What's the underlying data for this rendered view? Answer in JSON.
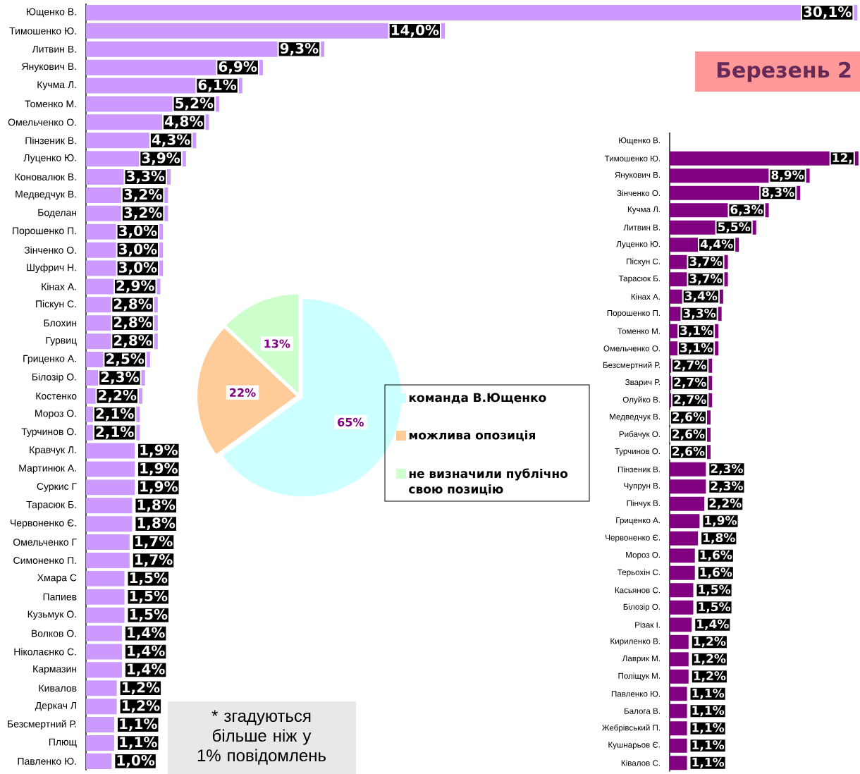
{
  "chart_data": [
    {
      "type": "bar",
      "orientation": "horizontal",
      "color": "#cc99ff",
      "xlim": [
        0,
        30.2
      ],
      "tick_labels": "y",
      "categories": [
        "Ющенко В.",
        "Тимошенко Ю.",
        "Литвин В.",
        "Янукович В.",
        "Кучма Л.",
        "Томенко М.",
        "Омельченко О.",
        "Пінзеник В.",
        "Луценко Ю.",
        "Коновалюк В.",
        "Медведчук В.",
        "Боделан",
        "Порошенко П.",
        "Зінченко О.",
        "Шуфрич Н.",
        "Кінах А.",
        "Піскун С.",
        "Блохин",
        "Гурвиц",
        "Гриценко А.",
        "Білозір О.",
        "Костенко",
        "Мороз О.",
        "Турчинов О.",
        "Кравчук Л.",
        "Мартинюк А.",
        "Суркис Г",
        "Тарасюк Б.",
        "Червоненко Є.",
        "Омельченко Г",
        "Симоненко П.",
        "Хмара С",
        "Папиев",
        "Кузьмук О.",
        "Волков О.",
        "Ніколаєнко С.",
        "Кармазин",
        "Кивалов",
        "Деркач Л",
        "Безсмертний Р.",
        "Плющ",
        "Павленко Ю."
      ],
      "values": [
        30.1,
        14.0,
        9.3,
        6.9,
        6.1,
        5.2,
        4.8,
        4.3,
        3.9,
        3.3,
        3.2,
        3.2,
        3.0,
        3.0,
        3.0,
        2.9,
        2.8,
        2.8,
        2.8,
        2.5,
        2.3,
        2.2,
        2.1,
        2.1,
        1.9,
        1.9,
        1.9,
        1.8,
        1.8,
        1.7,
        1.7,
        1.5,
        1.5,
        1.5,
        1.4,
        1.4,
        1.4,
        1.2,
        1.2,
        1.1,
        1.1,
        1.0
      ],
      "value_labels": [
        "30,1%",
        "14,0%",
        "9,3%",
        "6,9%",
        "6,1%",
        "5,2%",
        "4,8%",
        "4,3%",
        "3,9%",
        "3,3%",
        "3,2%",
        "3,2%",
        "3,0%",
        "3,0%",
        "3,0%",
        "2,9%",
        "2,8%",
        "2,8%",
        "2,8%",
        "2,5%",
        "2,3%",
        "2,2%",
        "2,1%",
        "2,1%",
        "1,9%",
        "1,9%",
        "1,9%",
        "1,8%",
        "1,8%",
        "1,7%",
        "1,7%",
        "1,5%",
        "1,5%",
        "1,5%",
        "1,4%",
        "1,4%",
        "1,4%",
        "1,2%",
        "1,2%",
        "1,1%",
        "1,1%",
        "1,0%"
      ],
      "annotations": [
        "* згадуються більше ніж у 1% повідомлень"
      ]
    },
    {
      "type": "pie",
      "legend": "right",
      "categories": [
        "команда В.Ющенко",
        "можлива опозиція",
        "не визначили публічно свою позицію"
      ],
      "values": [
        65,
        22,
        13
      ],
      "colors": [
        "#ccffff",
        "#ffcc99",
        "#ccffcc"
      ],
      "value_labels": [
        "65%",
        "22%",
        "13%"
      ]
    },
    {
      "type": "bar",
      "orientation": "horizontal",
      "color": "#800080",
      "xlim": [
        0,
        12.1
      ],
      "tick_labels": "y",
      "title": "Березень 2",
      "categories": [
        "Ющенко В.",
        "Тимошенко Ю.",
        "Янукович В.",
        "Зінченко О.",
        "Кучма Л.",
        "Литвин В.",
        "Луценко Ю.",
        "Піскун С.",
        "Тарасюк Б.",
        "Кінах А.",
        "Порошенко П.",
        "Томенко М.",
        "Омельченко О.",
        "Безсмертний Р.",
        "Зварич Р.",
        "Олуйко В.",
        "Медведчук В.",
        "Рибачук О.",
        "Турчинов О.",
        "Пінзеник В.",
        "Чупрун В.",
        "Пінчук В.",
        "Гриценко А.",
        "Червоненко Є.",
        "Мороз О.",
        "Терьохін С.",
        "Касьянов С.",
        "Білозір О.",
        "Різак І.",
        "Кириленко В.",
        "Лаврик М.",
        "Поліщук М.",
        "Павленко Ю.",
        "Балога В.",
        "Жебрівський П.",
        "Кушнарьов Є.",
        "Ківалов С."
      ],
      "values": [
        null,
        12,
        8.9,
        8.3,
        6.3,
        5.5,
        4.4,
        3.7,
        3.7,
        3.4,
        3.3,
        3.1,
        3.1,
        2.7,
        2.7,
        2.7,
        2.6,
        2.6,
        2.6,
        2.3,
        2.3,
        2.2,
        1.9,
        1.8,
        1.6,
        1.6,
        1.5,
        1.5,
        1.4,
        1.2,
        1.2,
        1.2,
        1.1,
        1.1,
        1.1,
        1.1,
        1.1
      ],
      "value_labels": [
        null,
        "12,",
        "8,9%",
        "8,3%",
        "6,3%",
        "5,5%",
        "4,4%",
        "3,7%",
        "3,7%",
        "3,4%",
        "3,3%",
        "3,1%",
        "3,1%",
        "2,7%",
        "2,7%",
        "2,7%",
        "2,6%",
        "2,6%",
        "2,6%",
        "2,3%",
        "2,3%",
        "2,2%",
        "1,9%",
        "1,8%",
        "1,6%",
        "1,6%",
        "1,5%",
        "1,5%",
        "1,4%",
        "1,2%",
        "1,2%",
        "1,2%",
        "1,1%",
        "1,1%",
        "1,1%",
        "1,1%",
        "1,1%"
      ]
    }
  ]
}
